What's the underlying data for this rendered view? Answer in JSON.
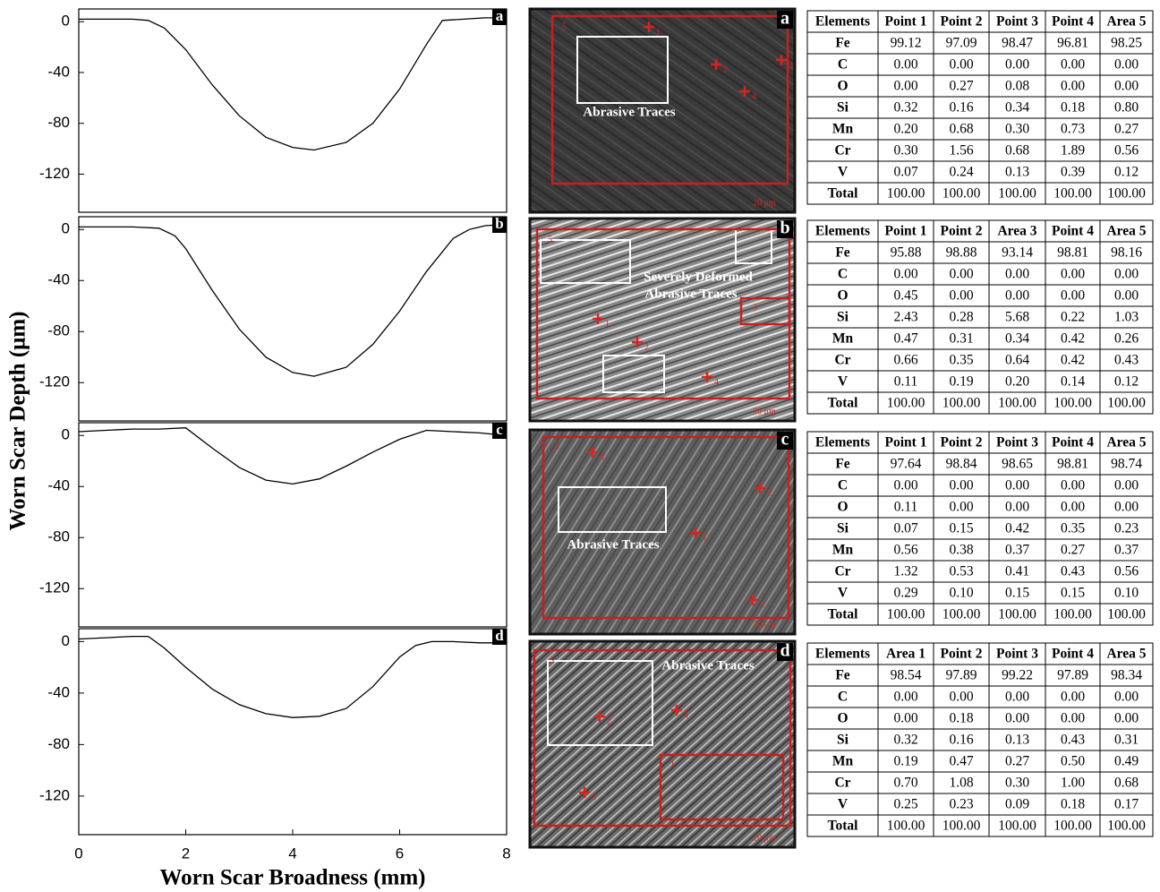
{
  "axis_labels": {
    "x": "Worn Scar Broadness (mm)",
    "y": "Worn Scar Depth (μm)"
  },
  "chart_data": [
    {
      "type": "line",
      "panel_label": "a",
      "x": [
        0,
        0.5,
        1.0,
        1.3,
        1.6,
        2.0,
        2.5,
        3.0,
        3.5,
        4.0,
        4.4,
        5.0,
        5.5,
        6.0,
        6.5,
        6.8,
        7.2,
        7.6,
        8.0
      ],
      "values": [
        2,
        2,
        2,
        1,
        -5,
        -22,
        -50,
        -74,
        -91,
        -99,
        -101,
        -95,
        -80,
        -53,
        -18,
        1,
        2,
        3,
        3
      ],
      "xlim": [
        0,
        8
      ],
      "ylim": [
        -150,
        10
      ],
      "yticks": [
        0,
        -40,
        -80,
        -120
      ],
      "color": "#000000"
    },
    {
      "type": "line",
      "panel_label": "b",
      "x": [
        0,
        0.5,
        1.0,
        1.5,
        1.8,
        2.0,
        2.5,
        3.0,
        3.5,
        4.0,
        4.4,
        5.0,
        5.5,
        6.0,
        6.5,
        7.0,
        7.3,
        7.6,
        8.0
      ],
      "values": [
        2,
        2,
        2,
        1,
        -5,
        -15,
        -48,
        -78,
        -100,
        -112,
        -115,
        -108,
        -90,
        -64,
        -33,
        -7,
        0,
        3,
        4
      ],
      "xlim": [
        0,
        8
      ],
      "ylim": [
        -150,
        10
      ],
      "yticks": [
        0,
        -40,
        -80,
        -120
      ],
      "color": "#000000"
    },
    {
      "type": "line",
      "panel_label": "c",
      "x": [
        0,
        0.5,
        1.0,
        1.5,
        2.0,
        2.5,
        3.0,
        3.5,
        4.0,
        4.5,
        5.0,
        5.5,
        6.0,
        6.5,
        7.0,
        7.5,
        8.0
      ],
      "values": [
        3,
        4,
        5,
        5,
        6,
        -10,
        -25,
        -35,
        -38,
        -34,
        -24,
        -13,
        -3,
        4,
        3,
        2,
        0
      ],
      "xlim": [
        0,
        8
      ],
      "ylim": [
        -150,
        10
      ],
      "yticks": [
        0,
        -40,
        -80,
        -120
      ],
      "color": "#000000"
    },
    {
      "type": "line",
      "panel_label": "d",
      "x": [
        0,
        0.5,
        1.0,
        1.3,
        1.6,
        2.0,
        2.5,
        3.0,
        3.5,
        4.0,
        4.5,
        5.0,
        5.5,
        6.0,
        6.3,
        6.6,
        7.0,
        7.5,
        8.0
      ],
      "values": [
        2,
        3,
        4,
        4,
        -5,
        -20,
        -37,
        -49,
        -56,
        -59,
        -58,
        -52,
        -35,
        -12,
        -3,
        0,
        0,
        -1,
        -1
      ],
      "xlim": [
        0,
        8
      ],
      "ylim": [
        -150,
        10
      ],
      "yticks": [
        0,
        -40,
        -80,
        -120
      ],
      "xticks": [
        0,
        2,
        4,
        6,
        8
      ],
      "color": "#000000"
    }
  ],
  "images": [
    {
      "label": "a",
      "annotations": [
        "Abrasive Traces"
      ],
      "markers": [
        "1",
        "2",
        "3",
        "4",
        "5"
      ],
      "scale": "20 μm"
    },
    {
      "label": "b",
      "annotations": [
        "Severely Deformed",
        "Abrasive Traces"
      ],
      "markers": [
        "1",
        "2",
        "3",
        "4",
        "5"
      ],
      "scale": "20 μm"
    },
    {
      "label": "c",
      "annotations": [
        "Abrasive Traces"
      ],
      "markers": [
        "1",
        "2",
        "3",
        "4",
        "5"
      ],
      "scale": "20 μm"
    },
    {
      "label": "d",
      "annotations": [
        "Abrasive Traces"
      ],
      "markers": [
        "1",
        "2",
        "3",
        "4",
        "5"
      ],
      "scale": "20 μm"
    }
  ],
  "tables": [
    {
      "header": [
        "Elements",
        "Point 1",
        "Point 2",
        "Point 3",
        "Point 4",
        "Area 5"
      ],
      "rows": [
        [
          "Fe",
          "99.12",
          "97.09",
          "98.47",
          "96.81",
          "98.25"
        ],
        [
          "C",
          "0.00",
          "0.00",
          "0.00",
          "0.00",
          "0.00"
        ],
        [
          "O",
          "0.00",
          "0.27",
          "0.08",
          "0.00",
          "0.00"
        ],
        [
          "Si",
          "0.32",
          "0.16",
          "0.34",
          "0.18",
          "0.80"
        ],
        [
          "Mn",
          "0.20",
          "0.68",
          "0.30",
          "0.73",
          "0.27"
        ],
        [
          "Cr",
          "0.30",
          "1.56",
          "0.68",
          "1.89",
          "0.56"
        ],
        [
          "V",
          "0.07",
          "0.24",
          "0.13",
          "0.39",
          "0.12"
        ],
        [
          "Total",
          "100.00",
          "100.00",
          "100.00",
          "100.00",
          "100.00"
        ]
      ]
    },
    {
      "header": [
        "Elements",
        "Point 1",
        "Point 2",
        "Area 3",
        "Point 4",
        "Area 5"
      ],
      "rows": [
        [
          "Fe",
          "95.88",
          "98.88",
          "93.14",
          "98.81",
          "98.16"
        ],
        [
          "C",
          "0.00",
          "0.00",
          "0.00",
          "0.00",
          "0.00"
        ],
        [
          "O",
          "0.45",
          "0.00",
          "0.00",
          "0.00",
          "0.00"
        ],
        [
          "Si",
          "2.43",
          "0.28",
          "5.68",
          "0.22",
          "1.03"
        ],
        [
          "Mn",
          "0.47",
          "0.31",
          "0.34",
          "0.42",
          "0.26"
        ],
        [
          "Cr",
          "0.66",
          "0.35",
          "0.64",
          "0.42",
          "0.43"
        ],
        [
          "V",
          "0.11",
          "0.19",
          "0.20",
          "0.14",
          "0.12"
        ],
        [
          "Total",
          "100.00",
          "100.00",
          "100.00",
          "100.00",
          "100.00"
        ]
      ]
    },
    {
      "header": [
        "Elements",
        "Point 1",
        "Point 2",
        "Point 3",
        "Point 4",
        "Area 5"
      ],
      "rows": [
        [
          "Fe",
          "97.64",
          "98.84",
          "98.65",
          "98.81",
          "98.74"
        ],
        [
          "C",
          "0.00",
          "0.00",
          "0.00",
          "0.00",
          "0.00"
        ],
        [
          "O",
          "0.11",
          "0.00",
          "0.00",
          "0.00",
          "0.00"
        ],
        [
          "Si",
          "0.07",
          "0.15",
          "0.42",
          "0.35",
          "0.23"
        ],
        [
          "Mn",
          "0.56",
          "0.38",
          "0.37",
          "0.27",
          "0.37"
        ],
        [
          "Cr",
          "1.32",
          "0.53",
          "0.41",
          "0.43",
          "0.56"
        ],
        [
          "V",
          "0.29",
          "0.10",
          "0.15",
          "0.15",
          "0.10"
        ],
        [
          "Total",
          "100.00",
          "100.00",
          "100.00",
          "100.00",
          "100.00"
        ]
      ]
    },
    {
      "header": [
        "Elements",
        "Area 1",
        "Point 2",
        "Point 3",
        "Point 4",
        "Area 5"
      ],
      "rows": [
        [
          "Fe",
          "98.54",
          "97.89",
          "99.22",
          "97.89",
          "98.34"
        ],
        [
          "C",
          "0.00",
          "0.00",
          "0.00",
          "0.00",
          "0.00"
        ],
        [
          "O",
          "0.00",
          "0.18",
          "0.00",
          "0.00",
          "0.00"
        ],
        [
          "Si",
          "0.32",
          "0.16",
          "0.13",
          "0.43",
          "0.31"
        ],
        [
          "Mn",
          "0.19",
          "0.47",
          "0.27",
          "0.50",
          "0.49"
        ],
        [
          "Cr",
          "0.70",
          "1.08",
          "0.30",
          "1.00",
          "0.68"
        ],
        [
          "V",
          "0.25",
          "0.23",
          "0.09",
          "0.18",
          "0.17"
        ],
        [
          "Total",
          "100.00",
          "100.00",
          "100.00",
          "100.00",
          "100.00"
        ]
      ]
    }
  ]
}
